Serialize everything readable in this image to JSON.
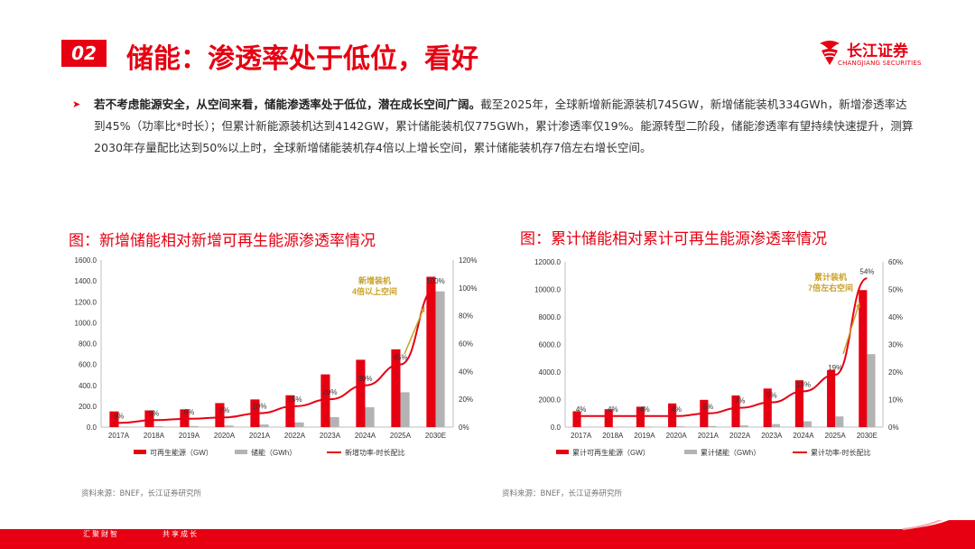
{
  "header": {
    "badge": "02",
    "title": "储能：渗透率处于低位，看好",
    "logo_name": "长江证券",
    "logo_sub": "CHANGJIANG SECURITIES"
  },
  "bullet": {
    "bold": "若不考虑能源安全，从空间来看，储能渗透率处于低位，潜在成长空间广阔。",
    "rest": "截至2025年，全球新增新能源装机745GW，新增储能装机334GWh，新增渗透率达到45%（功率比*时长）；但累计新能源装机达到4142GW，累计储能装机仅775GWh，累计渗透率仅19%。能源转型二阶段，储能渗透率有望持续快速提升，测算2030年存量配比达到50%以上时，全球新增储能装机存4倍以上增长空间，累计储能装机存7倍左右增长空间。"
  },
  "colors": {
    "accent": "#e60012",
    "storage": "#b3b3b3"
  },
  "charts": [
    {
      "title": "图：新增储能相对新增可再生能源渗透率情况",
      "annotation": [
        "新增装机",
        "4倍以上空间"
      ],
      "source": "资料来源：BNEF，长江证券研究所"
    },
    {
      "title": "图：累计储能相对累计可再生能源渗透率情况",
      "annotation": [
        "累计装机",
        "7倍左右空间"
      ],
      "source": "资料来源：BNEF，长江证券研究所"
    }
  ],
  "chart_data": [
    {
      "type": "bar",
      "categories": [
        "2017A",
        "2018A",
        "2019A",
        "2020A",
        "2021A",
        "2022A",
        "2023A",
        "2024A",
        "2025A",
        "2030E"
      ],
      "series": [
        {
          "name": "可再生能源（GW）",
          "type": "bar",
          "axis": "left",
          "values": [
            150,
            160,
            170,
            230,
            265,
            305,
            505,
            645,
            745,
            1440
          ]
        },
        {
          "name": "储能（GWh）",
          "type": "bar",
          "axis": "left",
          "values": [
            5,
            8,
            10,
            15,
            25,
            45,
            95,
            190,
            334,
            1300
          ]
        },
        {
          "name": "新增功率-时长配比",
          "type": "line",
          "axis": "right",
          "values": [
            3,
            5,
            6,
            7,
            10,
            15,
            20,
            30,
            45,
            100
          ]
        }
      ],
      "line_labels": [
        "3%",
        "5%",
        "6%",
        "7%",
        "10%",
        "15%",
        "20%",
        "30%",
        "45%",
        "100%"
      ],
      "y_left": {
        "min": 0,
        "max": 1600,
        "ticks": [
          "0.0",
          "200.0",
          "400.0",
          "600.0",
          "800.0",
          "1000.0",
          "1200.0",
          "1400.0",
          "1600.0"
        ]
      },
      "y_right": {
        "min": 0,
        "max": 120,
        "ticks": [
          "0%",
          "20%",
          "40%",
          "60%",
          "80%",
          "100%",
          "120%"
        ]
      },
      "legend_position": "bottom"
    },
    {
      "type": "bar",
      "categories": [
        "2017A",
        "2018A",
        "2019A",
        "2020A",
        "2021A",
        "2022A",
        "2023A",
        "2024A",
        "2025A",
        "2030E"
      ],
      "series": [
        {
          "name": "累计可再生能源（GW）",
          "type": "bar",
          "axis": "left",
          "values": [
            1150,
            1300,
            1480,
            1720,
            1980,
            2300,
            2800,
            3400,
            4142,
            9950
          ]
        },
        {
          "name": "累计储能（GWh）",
          "type": "bar",
          "axis": "left",
          "values": [
            20,
            30,
            40,
            55,
            80,
            125,
            220,
            420,
            775,
            5300
          ]
        },
        {
          "name": "累计功率-时长配比",
          "type": "line",
          "axis": "right",
          "values": [
            4,
            4,
            4,
            4,
            5,
            7,
            9,
            13,
            19,
            54
          ]
        }
      ],
      "line_labels": [
        "4%",
        "4%",
        "4%",
        "4%",
        "5%",
        "7%",
        "9%",
        "13%",
        "19%",
        "54%"
      ],
      "y_left": {
        "min": 0,
        "max": 12000,
        "ticks": [
          "0.0",
          "2000.0",
          "4000.0",
          "6000.0",
          "8000.0",
          "10000.0",
          "12000.0"
        ]
      },
      "y_right": {
        "min": 0,
        "max": 60,
        "ticks": [
          "0%",
          "10%",
          "20%",
          "30%",
          "40%",
          "50%",
          "60%"
        ]
      },
      "legend_position": "bottom"
    }
  ],
  "footer": {
    "left": "汇聚财智",
    "right": "共享成长"
  }
}
